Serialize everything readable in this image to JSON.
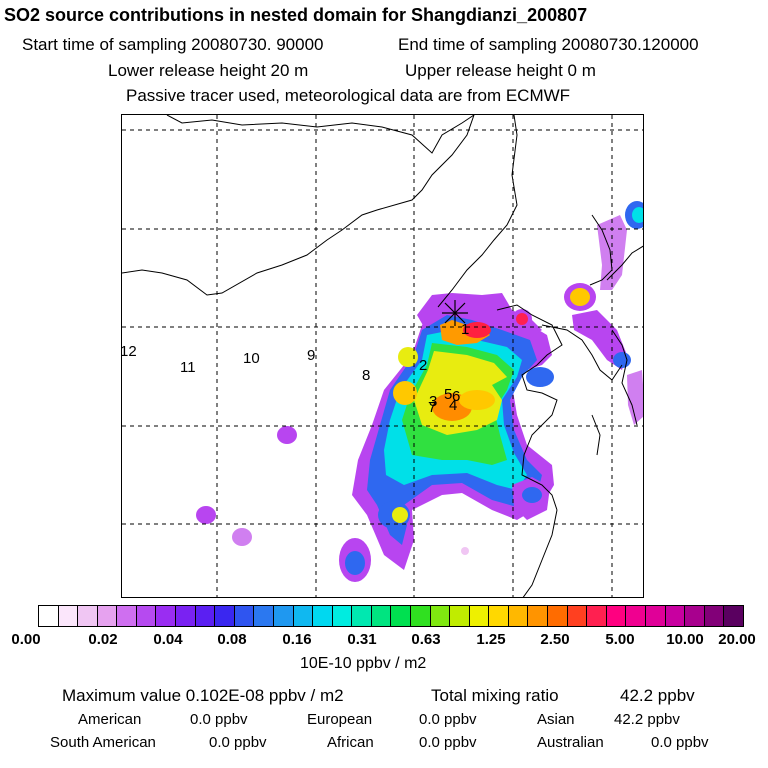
{
  "header": {
    "title": "SO2 source contributions in nested domain for Shangdianzi_200807",
    "start_time": "Start time of sampling 20080730. 90000",
    "end_time": "End time of sampling 20080730.120000",
    "lower_height": "Lower release height   20 m",
    "upper_height": "Upper release height    0 m",
    "tracer_note": "Passive tracer used, meteorological data are from ECMWF"
  },
  "map": {
    "station_marker": "star-asterisk",
    "source_labels": [
      "1",
      "2",
      "3",
      "4",
      "5",
      "6",
      "7",
      "8",
      "9",
      "10",
      "11",
      "12"
    ]
  },
  "colorbar": {
    "colors": [
      "#ffffff",
      "#fbe6fb",
      "#f0c6f3",
      "#e6a2ef",
      "#cf6ff0",
      "#b64af0",
      "#9a2df2",
      "#7a22f2",
      "#5b1ff2",
      "#3a27f0",
      "#2f55f0",
      "#2b78f0",
      "#1f98f0",
      "#10b8f0",
      "#00d8f0",
      "#00ece0",
      "#00e8b0",
      "#00e480",
      "#00e050",
      "#30e020",
      "#80e810",
      "#c0ec00",
      "#eef000",
      "#ffd800",
      "#ffb800",
      "#ff9400",
      "#ff6c00",
      "#ff4020",
      "#ff2050",
      "#ff0080",
      "#f00090",
      "#e00098",
      "#c800a0",
      "#a8008e",
      "#820078",
      "#5a0060"
    ],
    "tick_labels": [
      "0.00",
      "0.02",
      "0.04",
      "0.08",
      "0.16",
      "0.31",
      "0.63",
      "1.25",
      "2.50",
      "5.00",
      "10.00",
      "20.00"
    ],
    "units": "10E-10 ppbv / m2"
  },
  "stats": {
    "max_label": "Maximum value  0.102E-08 ppbv / m2",
    "total_label": "Total mixing ratio",
    "total_value": "42.2 ppbv",
    "american_label": "American",
    "american_value": "0.0 ppbv",
    "european_label": "European",
    "european_value": "0.0 ppbv",
    "asian_label": "Asian",
    "asian_value": "42.2 ppbv",
    "south_american_label": "South American",
    "south_american_value": "0.0 ppbv",
    "african_label": "African",
    "african_value": "0.0 ppbv",
    "australian_label": "Australian",
    "australian_value": "0.0 ppbv"
  }
}
